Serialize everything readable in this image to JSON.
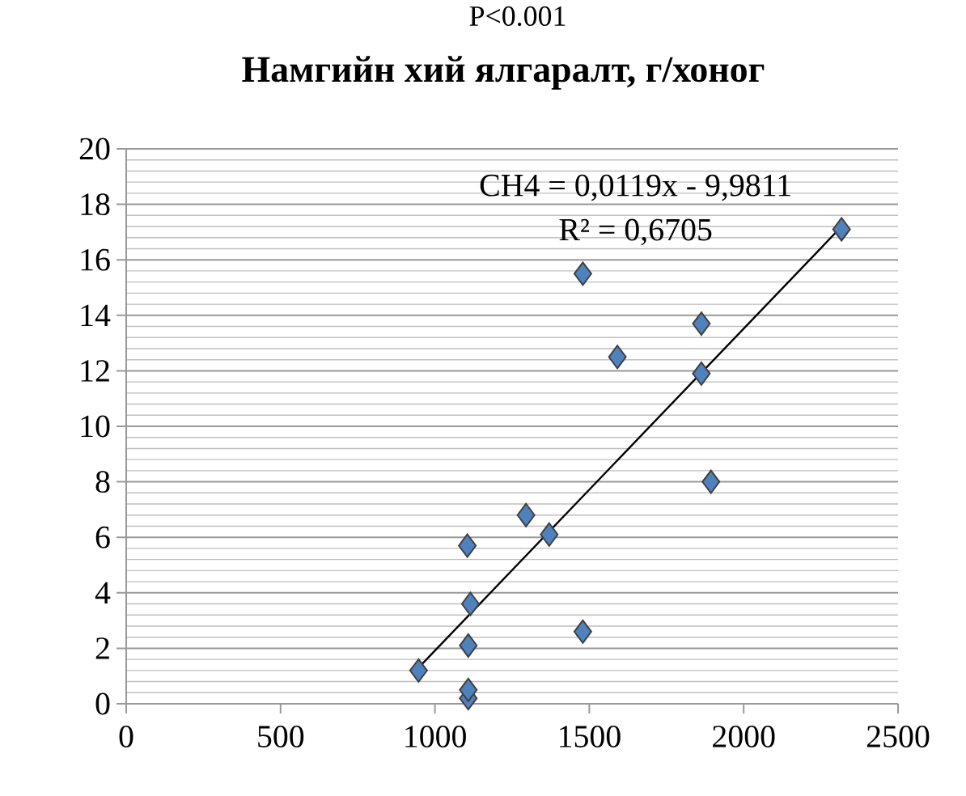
{
  "chart_data": {
    "type": "scatter",
    "title": "Намгийн хий ялгаралт, г/хоног",
    "xlim": [
      0,
      2500
    ],
    "xticks": [
      0,
      500,
      1000,
      1500,
      2000,
      2500
    ],
    "ylim": [
      0,
      20
    ],
    "yticks": [
      0,
      2,
      4,
      6,
      8,
      10,
      12,
      14,
      16,
      18,
      20
    ],
    "grid": "y",
    "marker": "diamond",
    "series": [
      {
        "color": "#4f81bd",
        "x": [
          947,
          1108,
          1108,
          1108,
          1115,
          1105,
          1295,
          1370,
          1479,
          1479,
          1591,
          1863,
          1863,
          1894,
          2317
        ],
        "values": [
          1.2,
          0.2,
          0.5,
          2.1,
          3.6,
          5.7,
          6.8,
          6.1,
          2.6,
          15.5,
          12.5,
          13.7,
          11.9,
          8.0,
          17.1
        ]
      },
      {
        "type": "line",
        "color": "#000000",
        "marker": "none",
        "x": [
          947,
          2317
        ],
        "values": [
          1.3,
          17.2
        ]
      }
    ],
    "annotations": [
      "P<0.001",
      "CH4 = 0,0119x - 9,9811",
      "R² = 0,6705"
    ]
  }
}
